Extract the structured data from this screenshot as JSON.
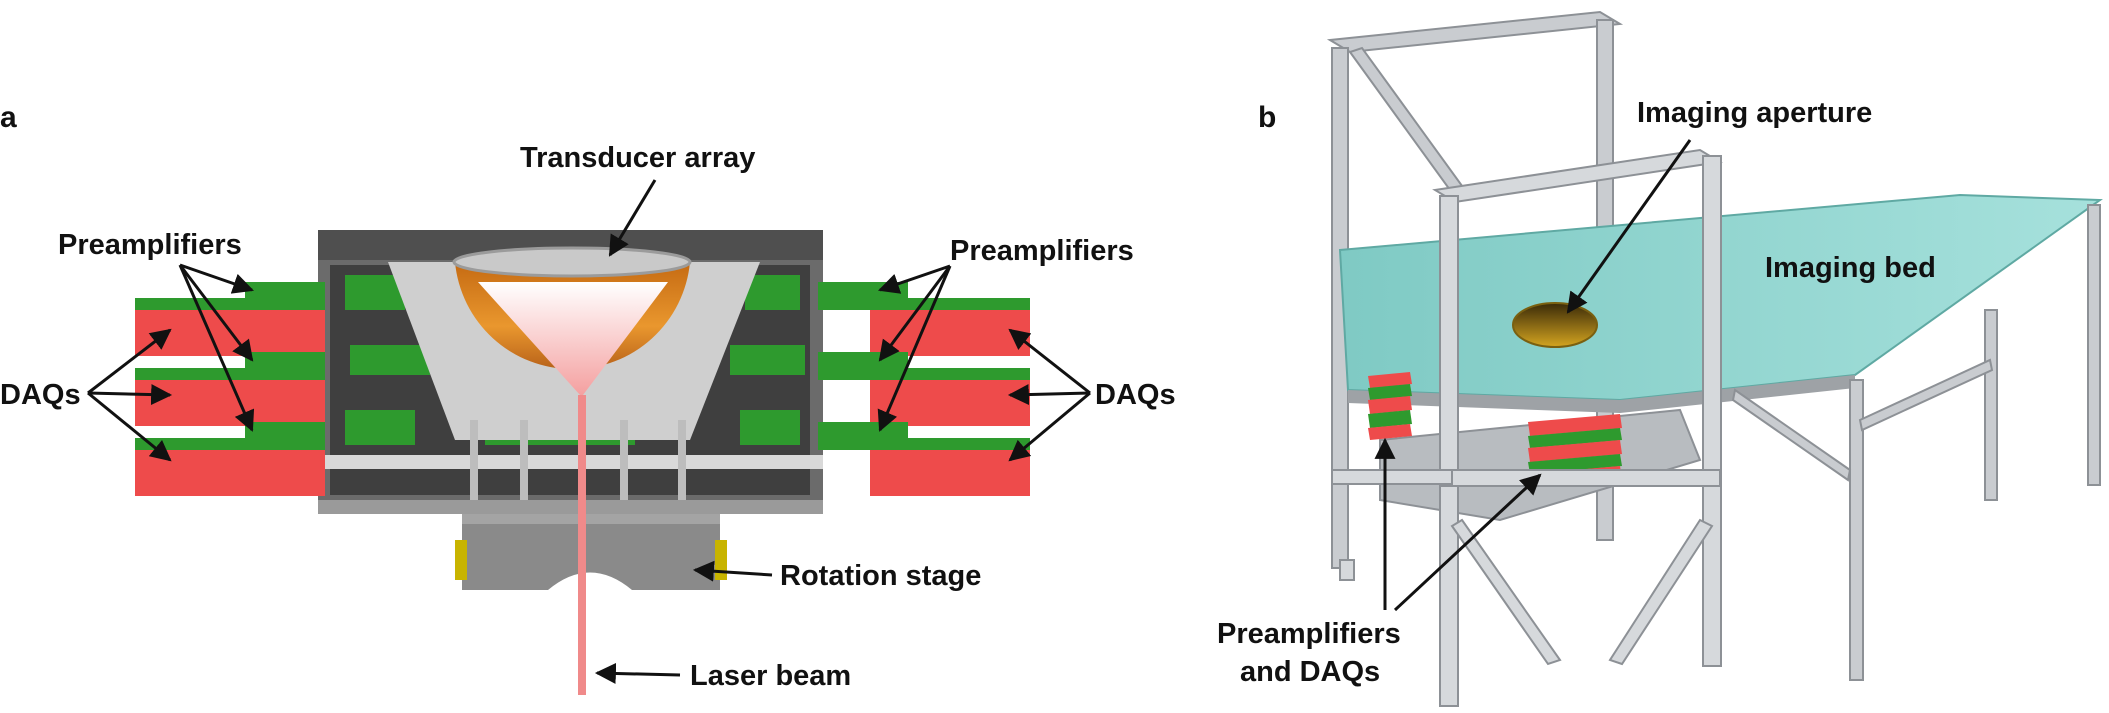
{
  "panels": {
    "a": {
      "letter": "a",
      "labels": {
        "transducer_array": "Transducer array",
        "preamplifiers_left": "Preamplifiers",
        "preamplifiers_right": "Preamplifiers",
        "daqs_left": "DAQs",
        "daqs_right": "DAQs",
        "rotation_stage": "Rotation stage",
        "laser_beam": "Laser beam"
      }
    },
    "b": {
      "letter": "b",
      "labels": {
        "imaging_aperture": "Imaging aperture",
        "imaging_bed": "Imaging bed",
        "preamps_daqs_line1": "Preamplifiers",
        "preamps_daqs_line2": "and DAQs"
      }
    }
  },
  "colors": {
    "daq_red": "#ee4b4b",
    "preamp_green": "#2e9a2e",
    "housing_gray": "#6e6e6e",
    "transducer_orange": "#e08a25",
    "laser_pink": "#f08a8a",
    "bed_cyan": "#8fd6d1",
    "frame_silver": "#c9ccd0"
  }
}
